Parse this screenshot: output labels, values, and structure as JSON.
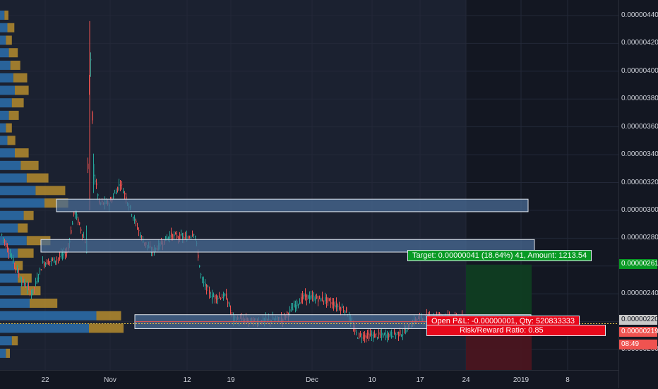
{
  "price_axis": {
    "ticks": [
      "0.00000440",
      "0.00000420",
      "0.00000400",
      "0.00000380",
      "0.00000360",
      "0.00000340",
      "0.00000320",
      "0.00000300",
      "0.00000280",
      "0.00000240",
      "0.00000200"
    ],
    "badge_target": "0.00000261",
    "badge_current": "0.00000220",
    "badge_last": "0.00000219",
    "badge_timer": "08:49"
  },
  "time_axis": {
    "labels": [
      "22",
      "Nov",
      "12",
      "19",
      "Dec",
      "10",
      "17",
      "24",
      "2019",
      "8"
    ]
  },
  "position_tool": {
    "target_label": "Target: 0.00000041 (18.64%) 41, Amount: 1213.54",
    "open_pl_label": "Open P&L: -0.00000001, Qty: 520833333",
    "risk_reward_label": "Risk/Reward Ratio: 0.85"
  },
  "colors": {
    "background": "#131722",
    "up": "#26a69a",
    "down": "#ef5350",
    "zone_fill": "#4a6b94",
    "vp_blue": "#2c6fad",
    "vp_gold": "#c99a2e",
    "target_green": "#089a24",
    "stop_red": "#e8091b"
  },
  "chart_data": {
    "type": "candlestick",
    "ylim": [
      1.9e-06,
      4.5e-06
    ],
    "x_labels": [
      "22",
      "Nov",
      "12",
      "19",
      "Dec",
      "10",
      "17",
      "24",
      "2019",
      "8"
    ],
    "price_levels": {
      "target": 2.61e-06,
      "current": 2.2e-06,
      "last": 2.19e-06
    },
    "zones": [
      {
        "low": 2.99e-06,
        "high": 3.08e-06
      },
      {
        "low": 2.7e-06,
        "high": 2.79e-06
      },
      {
        "low": 2.15e-06,
        "high": 2.25e-06
      }
    ],
    "volume_profile_rows": [
      [
        4.4e-06,
        3,
        4
      ],
      [
        4.31e-06,
        5,
        7
      ],
      [
        4.22e-06,
        4,
        6
      ],
      [
        4.13e-06,
        6,
        9
      ],
      [
        4.04e-06,
        7,
        10
      ],
      [
        3.95e-06,
        9,
        14
      ],
      [
        3.86e-06,
        10,
        14
      ],
      [
        3.77e-06,
        8,
        12
      ],
      [
        3.68e-06,
        6,
        10
      ],
      [
        3.59e-06,
        4,
        6
      ],
      [
        3.5e-06,
        5,
        8
      ],
      [
        3.41e-06,
        10,
        14
      ],
      [
        3.32e-06,
        14,
        18
      ],
      [
        3.23e-06,
        18,
        22
      ],
      [
        3.14e-06,
        24,
        30
      ],
      [
        3.05e-06,
        30,
        24
      ],
      [
        2.96e-06,
        16,
        10
      ],
      [
        2.87e-06,
        12,
        10
      ],
      [
        2.78e-06,
        18,
        24
      ],
      [
        2.69e-06,
        12,
        16
      ],
      [
        2.6e-06,
        10,
        8
      ],
      [
        2.51e-06,
        12,
        14
      ],
      [
        2.42e-06,
        14,
        20
      ],
      [
        2.33e-06,
        20,
        28
      ],
      [
        2.24e-06,
        65,
        25
      ],
      [
        2.15e-06,
        60,
        35
      ],
      [
        2.06e-06,
        8,
        6
      ],
      [
        1.97e-06,
        4,
        4
      ]
    ]
  }
}
